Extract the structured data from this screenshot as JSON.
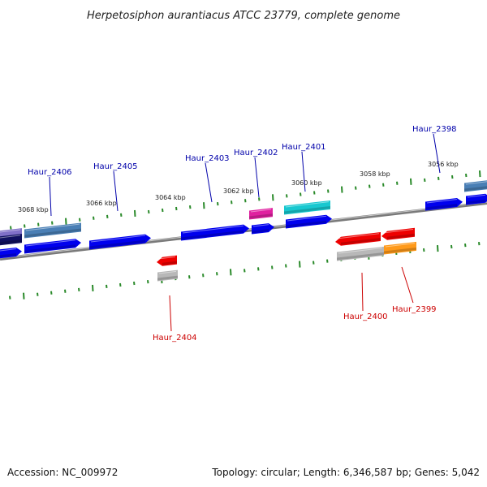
{
  "title": "Herpetosiphon aurantiacus ATCC 23779, complete genome",
  "footer": {
    "accession": "Accession: NC_009972",
    "stats": "Topology: circular; Length: 6,346,587 bp; Genes: 5,042"
  },
  "colors": {
    "forward_label": "#0000aa",
    "reverse_label": "#cc0000",
    "tick": "#2a8a2a",
    "backbone": "#7a7a7a",
    "blue": "#0000ee",
    "steelblue": "#4a7fb5",
    "magenta": "#e020a0",
    "cyan": "#18c8d0",
    "red": "#ee0000",
    "gray": "#b8b8b8",
    "orange": "#ff9a1a",
    "navy": "#101060",
    "purple": "#8070c8"
  },
  "kbp_marks": [
    "3068 kbp",
    "3066 kbp",
    "3064 kbp",
    "3062 kbp",
    "3060 kbp",
    "3058 kbp",
    "3056 kbp"
  ],
  "genes": [
    {
      "name": "Haur_2406",
      "strand": "forward"
    },
    {
      "name": "Haur_2405",
      "strand": "forward"
    },
    {
      "name": "Haur_2404",
      "strand": "reverse"
    },
    {
      "name": "Haur_2403",
      "strand": "forward"
    },
    {
      "name": "Haur_2402",
      "strand": "forward"
    },
    {
      "name": "Haur_2401",
      "strand": "forward"
    },
    {
      "name": "Haur_2400",
      "strand": "reverse"
    },
    {
      "name": "Haur_2399",
      "strand": "reverse"
    },
    {
      "name": "Haur_2398",
      "strand": "forward"
    }
  ]
}
